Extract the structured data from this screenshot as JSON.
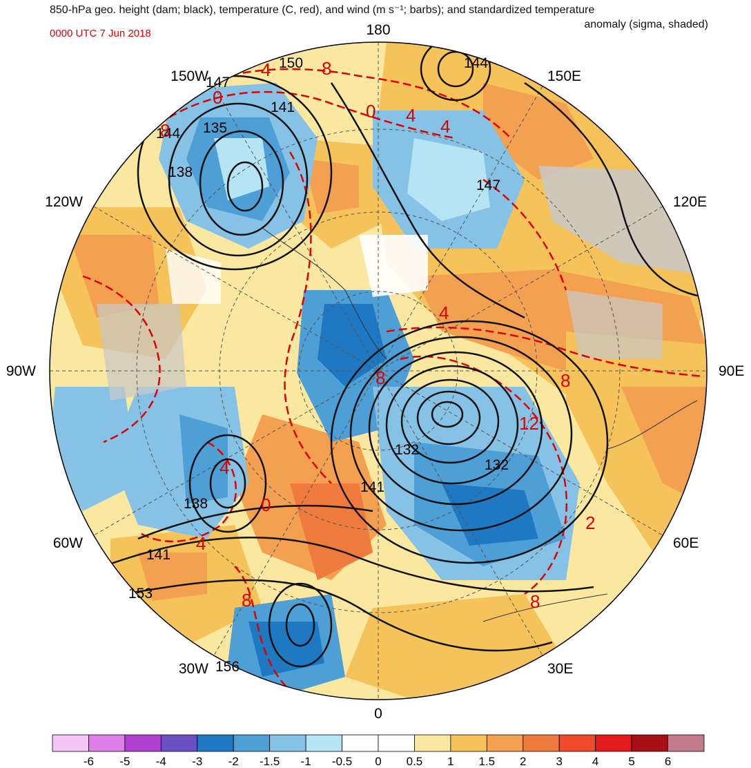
{
  "title": {
    "line1": "850-hPa geo. height (dam; black), temperature (C, red), and wind (m s⁻¹; barbs); and standardized temperature",
    "line2": "anomaly (sigma, shaded)",
    "date": "0000 UTC 7 Jun 2018"
  },
  "colors": {
    "height_contours": "#000000",
    "temperature_contours": "#e00000",
    "land": "#c8c8c8"
  },
  "longitude_labels": {
    "lon_180": "180",
    "lon_150E": "150E",
    "lon_120E": "120E",
    "lon_90E": "90E",
    "lon_60E": "60E",
    "lon_30E": "30E",
    "lon_0": "0",
    "lon_30W": "30W",
    "lon_60W": "60W",
    "lon_90W": "90W",
    "lon_120W": "120W",
    "lon_150W": "150W"
  },
  "height_labels": {
    "h150": "150",
    "h144": "144",
    "h147_nw": "147",
    "h141_top": "141",
    "h135": "135",
    "h144_w": "144",
    "h138_nw": "138",
    "h147_e": "147",
    "h132_a": "132",
    "h132_b": "132",
    "h141_c": "141",
    "h138_sw": "138",
    "h141_sw": "141",
    "h153": "153",
    "h156": "156"
  },
  "temperature_labels": {
    "t4_top": "4",
    "t8_top": "8",
    "t0_nw": "0",
    "t0_top": "0",
    "t4_mid": "4",
    "t4_mid2": "4",
    "t8_nw": "8",
    "t4_e": "4",
    "t8_center": "8",
    "t8_e": "8",
    "t12_e": "12",
    "t4_w": "4",
    "t0_w": "0",
    "t4_sw": "4",
    "t2_se": "2",
    "t8_s": "8",
    "t8_se": "8"
  },
  "colorbar": {
    "levels": [
      "-6",
      "-5",
      "-4",
      "-3",
      "-2",
      "-1.5",
      "-1",
      "-0.5",
      "0",
      "0.5",
      "1",
      "1.5",
      "2",
      "3",
      "4",
      "5",
      "6"
    ],
    "colors": [
      "#f5c6f5",
      "#dd7ee9",
      "#b040d0",
      "#6a50c0",
      "#1f78c2",
      "#4d9fd6",
      "#85c2e6",
      "#b5e5f5",
      "#ffffff",
      "#ffffff",
      "#fbe8a0",
      "#f5c35a",
      "#f3a050",
      "#ee7b3d",
      "#f04a2d",
      "#e31a1c",
      "#a50f15",
      "#c27b8a"
    ]
  }
}
